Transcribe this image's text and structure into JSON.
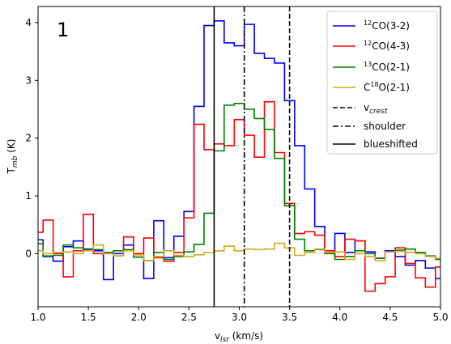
{
  "chart_data": {
    "type": "line",
    "drawstyle": "steps-mid",
    "panel_label": "1",
    "xlabel_main": "v",
    "xlabel_sub": "lsr",
    "xlabel_unit": " (km/s)",
    "ylabel_main": "T",
    "ylabel_sub": "mb",
    "ylabel_unit": " (K)",
    "xlim": [
      1.0,
      5.0
    ],
    "ylim": [
      -0.92,
      4.28
    ],
    "xticks": [
      1.0,
      1.5,
      2.0,
      2.5,
      3.0,
      3.5,
      4.0,
      4.5,
      5.0
    ],
    "xtick_labels": [
      "1.0",
      "1.5",
      "2.0",
      "2.5",
      "3.0",
      "3.5",
      "4.0",
      "4.5",
      "5.0"
    ],
    "yticks": [
      0,
      1,
      2,
      3,
      4
    ],
    "ytick_labels": [
      "0",
      "1",
      "2",
      "3",
      "4"
    ],
    "grid": false,
    "legend_position": "top-right",
    "x": [
      1.0,
      1.1,
      1.2,
      1.3,
      1.4,
      1.5,
      1.6,
      1.7,
      1.8,
      1.9,
      2.0,
      2.1,
      2.2,
      2.3,
      2.4,
      2.5,
      2.6,
      2.7,
      2.8,
      2.9,
      3.0,
      3.1,
      3.2,
      3.3,
      3.4,
      3.5,
      3.6,
      3.7,
      3.8,
      3.9,
      4.0,
      4.1,
      4.2,
      4.3,
      4.4,
      4.5,
      4.6,
      4.7,
      4.8,
      4.9,
      5.0
    ],
    "series": [
      {
        "legend_iso": "12",
        "legend_main": "CO(3-2)",
        "legend_sub": "",
        "color": "#0000ff",
        "values": [
          0.24,
          -0.05,
          -0.13,
          0.12,
          0.22,
          0.08,
          0.05,
          -0.45,
          0.0,
          0.15,
          -0.06,
          -0.43,
          0.57,
          -0.07,
          0.3,
          0.73,
          2.55,
          3.95,
          4.03,
          3.65,
          3.6,
          3.97,
          3.47,
          3.38,
          3.3,
          2.65,
          1.87,
          1.12,
          0.47,
          0.02,
          0.35,
          0.02,
          0.22,
          0.03,
          -0.08,
          0.05,
          -0.05,
          -0.2,
          -0.12,
          -0.25,
          -0.43
        ]
      },
      {
        "legend_iso": "12",
        "legend_main": "CO(4-3)",
        "legend_sub": "",
        "color": "#ff0000",
        "values": [
          0.37,
          0.58,
          0.0,
          -0.4,
          0.05,
          0.68,
          0.0,
          0.02,
          -0.04,
          0.29,
          0.0,
          0.27,
          -0.07,
          -0.13,
          0.02,
          0.62,
          2.24,
          1.8,
          1.9,
          1.87,
          2.32,
          2.05,
          1.67,
          2.63,
          1.75,
          0.87,
          0.35,
          0.38,
          0.32,
          0.05,
          -0.05,
          0.25,
          0.22,
          -0.65,
          -0.52,
          -0.4,
          0.1,
          -0.17,
          -0.42,
          -0.58,
          -0.23
        ]
      },
      {
        "legend_iso": "13",
        "legend_main": "CO(2-1)",
        "legend_sub": "",
        "color": "#008000",
        "values": [
          0.17,
          -0.04,
          -0.03,
          0.15,
          0.1,
          0.07,
          0.07,
          0.02,
          0.05,
          0.07,
          -0.06,
          -0.12,
          0.02,
          -0.1,
          -0.05,
          0.03,
          0.16,
          0.7,
          1.78,
          2.57,
          2.6,
          2.5,
          2.34,
          2.15,
          1.65,
          0.83,
          0.25,
          0.05,
          0.07,
          0.0,
          -0.1,
          -0.05,
          0.05,
          0.0,
          -0.08,
          0.03,
          0.06,
          0.08,
          0.02,
          -0.04,
          -0.1
        ]
      },
      {
        "legend_iso": "",
        "legend_main": "C",
        "legend_sup": "18",
        "legend_rest": "O(2-1)",
        "legend_sub": "",
        "color": "#daa520",
        "values": [
          0.05,
          0.0,
          0.02,
          0.03,
          0.0,
          0.05,
          0.15,
          0.0,
          -0.04,
          0.05,
          -0.02,
          -0.12,
          -0.05,
          0.05,
          -0.03,
          -0.05,
          -0.02,
          0.02,
          0.05,
          0.13,
          0.05,
          0.08,
          0.07,
          0.08,
          0.18,
          0.1,
          -0.03,
          0.02,
          0.08,
          0.02,
          0.03,
          -0.1,
          0.0,
          -0.05,
          -0.12,
          0.03,
          0.04,
          0.02,
          0.0,
          -0.05,
          -0.08
        ]
      }
    ],
    "vlines": [
      {
        "x": 3.5,
        "style": "dashed",
        "legend_main": "v",
        "legend_sub": "crest"
      },
      {
        "x": 3.05,
        "style": "dashdot",
        "legend_main": "shoulder",
        "legend_sub": ""
      },
      {
        "x": 2.75,
        "style": "solid",
        "legend_main": "blueshifted",
        "legend_sub": ""
      }
    ]
  }
}
